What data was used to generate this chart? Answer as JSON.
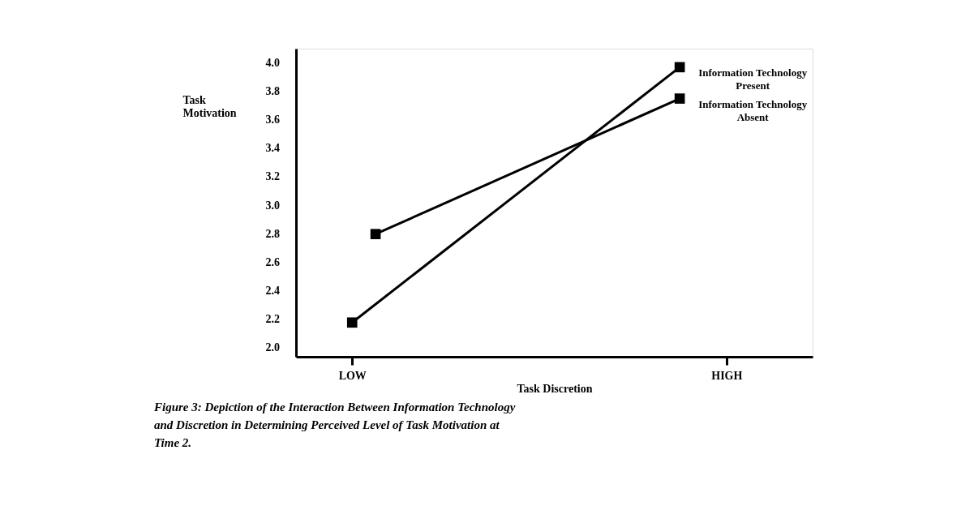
{
  "chart_data": {
    "type": "line",
    "xlabel": "Task Discretion",
    "ylabel": "Task Motivation",
    "categories": [
      "LOW",
      null,
      null,
      null,
      null,
      null,
      null,
      null,
      null,
      null,
      null,
      null,
      null,
      null,
      null,
      null,
      "HIGH"
    ],
    "ylim": [
      1.94,
      4.1
    ],
    "yticks": [
      {
        "value": 2.0,
        "label": "2.0"
      },
      2.2,
      2.4,
      2.6,
      2.8,
      {
        "value": 3.0,
        "label": "3.0"
      },
      3.2,
      3.4,
      3.6,
      3.8,
      {
        "value": 4.0,
        "label": "4.0"
      }
    ],
    "series": [
      {
        "name": "Information Technology Present",
        "color": "#000000",
        "values": [
          2.18,
          null,
          null,
          null,
          null,
          null,
          null,
          null,
          null,
          null,
          null,
          null,
          null,
          null,
          3.97,
          null,
          null
        ]
      },
      {
        "name": "Information Technology Absent",
        "color": "#000000",
        "values": [
          null,
          2.8,
          null,
          null,
          null,
          null,
          null,
          null,
          null,
          null,
          null,
          null,
          null,
          null,
          3.75,
          null,
          null
        ]
      }
    ],
    "marker": "square",
    "line_style": "solid",
    "annotations": [
      "Figure 3: Depiction of the Interaction Between Information Technology and Discretion in Determining Perceived Level of Task Motivation at Time 2."
    ]
  }
}
